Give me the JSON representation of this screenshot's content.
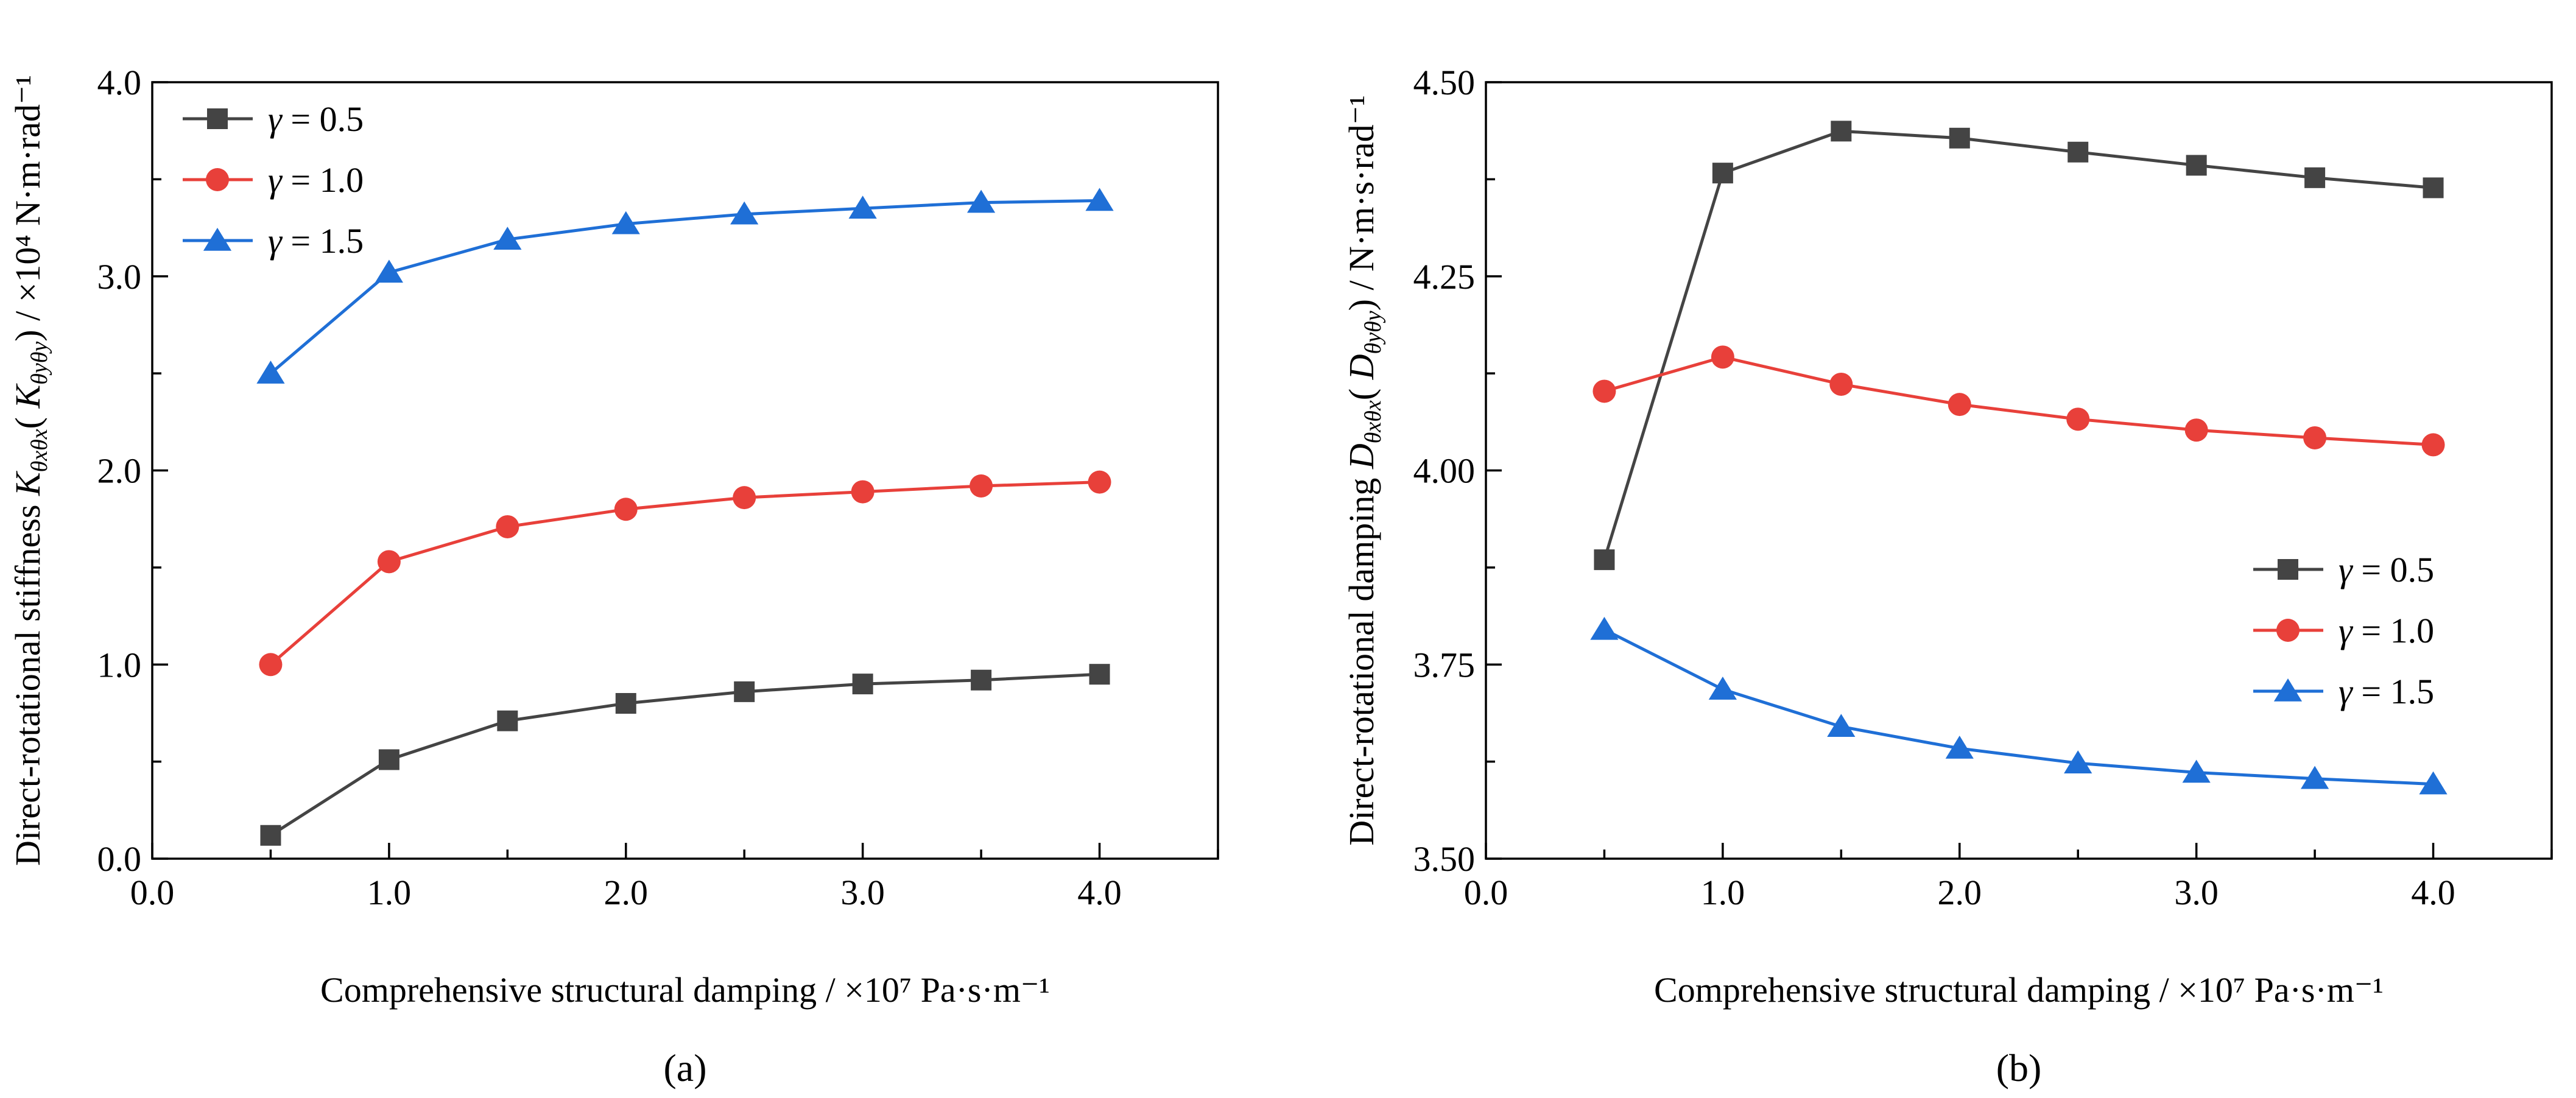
{
  "chart_data": [
    {
      "type": "line",
      "panel_label": "(a)",
      "xlabel": "Comprehensive structural damping / ×10⁷ Pa·s·m⁻¹",
      "ylabel": "Direct-rotational stiffness K_θxθx( K_θyθy) / ×10⁴ N·m·rad⁻¹",
      "ylabel_main": "Direct-rotational stiffness ",
      "ylabel_sym": "K",
      "ylabel_sub": "θxθx",
      "ylabel_mid": "( ",
      "ylabel_sym2": "K",
      "ylabel_sub2": "θyθy",
      "ylabel_unit": ") / ×10⁴ N·m·rad⁻¹",
      "xlim": [
        0,
        4.5
      ],
      "ylim": [
        0,
        4.0
      ],
      "xticks": [
        "0.0",
        "1.0",
        "2.0",
        "3.0",
        "4.0"
      ],
      "yticks": [
        "0.0",
        "1.0",
        "2.0",
        "3.0",
        "4.0"
      ],
      "legend_position": "top-left",
      "x": [
        0.5,
        1.0,
        1.5,
        2.0,
        2.5,
        3.0,
        3.5,
        4.0
      ],
      "series": [
        {
          "name": "γ = 0.5",
          "marker": "square",
          "color": "#444444",
          "values": [
            0.12,
            0.51,
            0.71,
            0.8,
            0.86,
            0.9,
            0.92,
            0.95
          ]
        },
        {
          "name": "γ = 1.0",
          "marker": "circle",
          "color": "#e8403a",
          "values": [
            1.0,
            1.53,
            1.71,
            1.8,
            1.86,
            1.89,
            1.92,
            1.94
          ]
        },
        {
          "name": "γ = 1.5",
          "marker": "triangle",
          "color": "#1f6fd6",
          "values": [
            2.5,
            3.02,
            3.19,
            3.27,
            3.32,
            3.35,
            3.38,
            3.39
          ]
        }
      ]
    },
    {
      "type": "line",
      "panel_label": "(b)",
      "xlabel": "Comprehensive structural damping / ×10⁷ Pa·s·m⁻¹",
      "ylabel": "Direct-rotational damping D_θxθx( D_θyθy) / N·m·s·rad⁻¹",
      "ylabel_main": "Direct-rotational damping ",
      "ylabel_sym": "D",
      "ylabel_sub": "θxθx",
      "ylabel_mid": "( ",
      "ylabel_sym2": "D",
      "ylabel_sub2": "θyθy",
      "ylabel_unit": ") / N·m·s·rad⁻¹",
      "xlim": [
        0,
        4.5
      ],
      "ylim": [
        3.5,
        4.5
      ],
      "xticks": [
        "0.0",
        "1.0",
        "2.0",
        "3.0",
        "4.0"
      ],
      "yticks": [
        "3.50",
        "3.75",
        "4.00",
        "4.25",
        "4.50"
      ],
      "legend_position": "center-right",
      "x": [
        0.5,
        1.0,
        1.5,
        2.0,
        2.5,
        3.0,
        3.5,
        4.0
      ],
      "series": [
        {
          "name": "γ = 0.5",
          "marker": "square",
          "color": "#444444",
          "values": [
            3.885,
            4.383,
            4.437,
            4.428,
            4.41,
            4.393,
            4.377,
            4.364
          ]
        },
        {
          "name": "γ = 1.0",
          "marker": "circle",
          "color": "#e8403a",
          "values": [
            4.102,
            4.146,
            4.111,
            4.085,
            4.066,
            4.052,
            4.042,
            4.033
          ]
        },
        {
          "name": "γ = 1.5",
          "marker": "triangle",
          "color": "#1f6fd6",
          "values": [
            3.795,
            3.718,
            3.67,
            3.642,
            3.623,
            3.611,
            3.603,
            3.596
          ]
        }
      ]
    }
  ]
}
